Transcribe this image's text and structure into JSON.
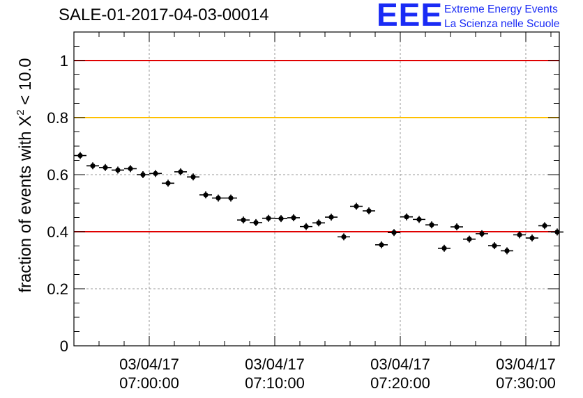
{
  "title": "SALE-01-2017-04-03-00014",
  "logo": {
    "mark": "EEE",
    "line1": "Extreme Energy Events",
    "line2": "La Scienza nelle Scuole",
    "color": "#1a2bf5"
  },
  "y_axis_label": {
    "prefix": "fraction of events with ",
    "chi": "X",
    "superscript": "2",
    "suffix": " < 10.0"
  },
  "chart_data": {
    "type": "scatter",
    "title": "SALE-01-2017-04-03-00014",
    "ylabel": "fraction of events with X² < 10.0",
    "xlabel": "",
    "x_range": [
      "2017-04-03 06:54:00",
      "2017-04-03 07:32:40"
    ],
    "ylim": [
      0,
      1.1
    ],
    "y_ticks": [
      0,
      0.2,
      0.4,
      0.6,
      0.8,
      1
    ],
    "y_tick_labels": [
      "0",
      "0.2",
      "0.4",
      "0.6",
      "0.8",
      "1"
    ],
    "x_ticks": [
      {
        "time": "07:00:00",
        "date_label": "03/04/17",
        "time_label": "07:00:00"
      },
      {
        "time": "07:10:00",
        "date_label": "03/04/17",
        "time_label": "07:10:00"
      },
      {
        "time": "07:20:00",
        "date_label": "03/04/17",
        "time_label": "07:20:00"
      },
      {
        "time": "07:30:00",
        "date_label": "03/04/17",
        "time_label": "07:30:00"
      }
    ],
    "grid": true,
    "reference_lines": [
      {
        "y": 1.0,
        "color": "#e00000"
      },
      {
        "y": 0.8,
        "color": "#ffc000"
      },
      {
        "y": 0.4,
        "color": "#e00000"
      }
    ],
    "bin_width_seconds": 60,
    "series": [
      {
        "marker_color": "#000000",
        "points": [
          {
            "x": "06:54:30",
            "y": 0.667
          },
          {
            "x": "06:55:30",
            "y": 0.631
          },
          {
            "x": "06:56:30",
            "y": 0.625
          },
          {
            "x": "06:57:30",
            "y": 0.616
          },
          {
            "x": "06:58:30",
            "y": 0.621
          },
          {
            "x": "06:59:30",
            "y": 0.6
          },
          {
            "x": "07:00:30",
            "y": 0.604
          },
          {
            "x": "07:01:30",
            "y": 0.57
          },
          {
            "x": "07:02:30",
            "y": 0.61
          },
          {
            "x": "07:03:30",
            "y": 0.592
          },
          {
            "x": "07:04:30",
            "y": 0.529
          },
          {
            "x": "07:05:30",
            "y": 0.518
          },
          {
            "x": "07:06:30",
            "y": 0.518
          },
          {
            "x": "07:07:30",
            "y": 0.441
          },
          {
            "x": "07:08:30",
            "y": 0.432
          },
          {
            "x": "07:09:30",
            "y": 0.447
          },
          {
            "x": "07:10:30",
            "y": 0.446
          },
          {
            "x": "07:11:30",
            "y": 0.449
          },
          {
            "x": "07:12:30",
            "y": 0.418
          },
          {
            "x": "07:13:30",
            "y": 0.431
          },
          {
            "x": "07:14:30",
            "y": 0.451
          },
          {
            "x": "07:15:30",
            "y": 0.382
          },
          {
            "x": "07:16:30",
            "y": 0.489
          },
          {
            "x": "07:17:30",
            "y": 0.473
          },
          {
            "x": "07:18:30",
            "y": 0.354
          },
          {
            "x": "07:19:30",
            "y": 0.397
          },
          {
            "x": "07:20:30",
            "y": 0.452
          },
          {
            "x": "07:21:30",
            "y": 0.443
          },
          {
            "x": "07:22:30",
            "y": 0.424
          },
          {
            "x": "07:23:30",
            "y": 0.342
          },
          {
            "x": "07:24:30",
            "y": 0.417
          },
          {
            "x": "07:25:30",
            "y": 0.374
          },
          {
            "x": "07:26:30",
            "y": 0.393
          },
          {
            "x": "07:27:30",
            "y": 0.351
          },
          {
            "x": "07:28:30",
            "y": 0.333
          },
          {
            "x": "07:29:30",
            "y": 0.389
          },
          {
            "x": "07:30:30",
            "y": 0.378
          },
          {
            "x": "07:31:30",
            "y": 0.421
          },
          {
            "x": "07:32:30",
            "y": 0.399
          }
        ]
      }
    ]
  }
}
